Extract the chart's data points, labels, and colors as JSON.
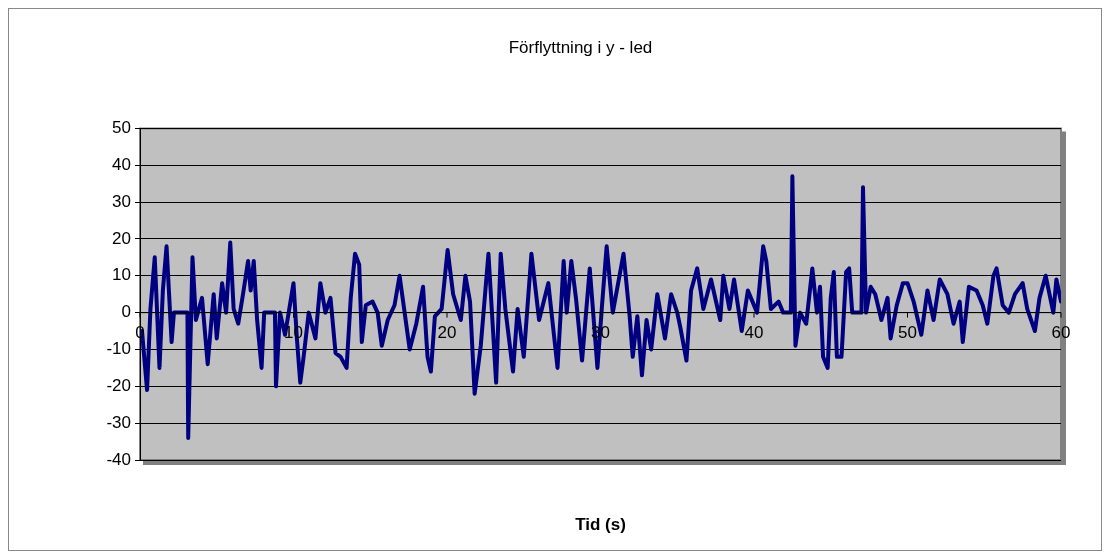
{
  "chart_data": {
    "type": "line",
    "title": "Förflyttning i y - led",
    "xlabel": "Tid (s)",
    "xlim": [
      0,
      60
    ],
    "xticks": [
      0,
      10,
      20,
      30,
      40,
      50,
      60
    ],
    "ylim": [
      -40,
      50
    ],
    "yticks": [
      -40,
      -30,
      -20,
      -10,
      0,
      10,
      20,
      30,
      40,
      50
    ],
    "grid": "y",
    "legend": false,
    "marker": "none",
    "line_style": "solid",
    "series": [
      {
        "color": "#000080",
        "x": [
          0.13,
          0.46,
          0.68,
          0.96,
          1.27,
          1.49,
          1.73,
          2.06,
          2.21,
          3.09,
          3.14,
          3.42,
          3.64,
          4.04,
          4.41,
          4.8,
          5.0,
          5.35,
          5.61,
          5.88,
          6.1,
          6.4,
          6.71,
          7.04,
          7.21,
          7.41,
          7.63,
          7.92,
          8.09,
          8.79,
          8.86,
          9.12,
          9.45,
          10.0,
          10.22,
          10.44,
          10.66,
          10.99,
          11.43,
          11.75,
          12.08,
          12.41,
          12.74,
          13.07,
          13.46,
          13.73,
          14.01,
          14.28,
          14.45,
          14.71,
          15.15,
          15.48,
          15.75,
          16.14,
          16.58,
          16.91,
          17.24,
          17.57,
          18.0,
          18.44,
          18.73,
          18.95,
          19.21,
          19.65,
          20.04,
          20.4,
          20.9,
          21.2,
          21.5,
          21.8,
          22.2,
          22.7,
          23.2,
          23.5,
          23.8,
          24.3,
          24.6,
          25.0,
          25.5,
          26.0,
          26.6,
          27.2,
          27.6,
          27.8,
          28.1,
          28.4,
          28.8,
          29.3,
          29.8,
          30.1,
          30.4,
          30.8,
          31.5,
          31.9,
          32.1,
          32.4,
          32.7,
          33.0,
          33.3,
          33.7,
          34.2,
          34.6,
          35.0,
          35.2,
          35.6,
          35.9,
          36.3,
          36.7,
          37.2,
          37.8,
          38.0,
          38.4,
          38.7,
          39.2,
          39.6,
          40.2,
          40.6,
          40.8,
          41.1,
          41.6,
          41.9,
          42.4,
          42.5,
          42.7,
          43.0,
          43.4,
          43.8,
          44.1,
          44.3,
          44.5,
          44.8,
          45.0,
          45.2,
          45.4,
          45.7,
          46.0,
          46.2,
          46.4,
          47.0,
          47.1,
          47.3,
          47.6,
          47.9,
          48.3,
          48.7,
          48.9,
          49.3,
          49.7,
          50.0,
          50.4,
          50.9,
          51.3,
          51.7,
          52.1,
          52.6,
          53.0,
          53.4,
          53.6,
          54.0,
          54.5,
          54.9,
          55.2,
          55.6,
          55.8,
          56.2,
          56.6,
          57.0,
          57.5,
          57.8,
          58.3,
          58.6,
          59.0,
          59.5,
          59.7,
          60.0
        ],
        "values": [
          -5,
          -21,
          1,
          15,
          -15,
          6,
          18,
          -8,
          0,
          0,
          -34,
          15,
          -2,
          4,
          -14,
          5,
          -7,
          8,
          0,
          19,
          1,
          -3,
          5,
          14,
          6,
          14,
          -2,
          -15,
          0,
          0,
          -20,
          0,
          -6,
          8,
          -7,
          -19,
          -12,
          0,
          -7,
          8,
          0,
          4,
          -11,
          -12,
          -15,
          4,
          16,
          13,
          -8,
          2,
          3,
          0,
          -9,
          -2,
          2,
          10,
          0,
          -10,
          -3,
          7,
          -12,
          -16,
          -1,
          1,
          17,
          5,
          -2,
          10,
          3,
          -22,
          -9,
          16,
          -19,
          16,
          1,
          -16,
          1,
          -12,
          16,
          -2,
          8,
          -15,
          14,
          0,
          14,
          4,
          -13,
          12,
          -15,
          2,
          18,
          0,
          16,
          -1,
          -12,
          -1,
          -17,
          -2,
          -10,
          5,
          -7,
          5,
          0,
          -4,
          -13,
          6,
          12,
          1,
          9,
          -2,
          10,
          1,
          9,
          -5,
          6,
          0,
          18,
          14,
          1,
          3,
          0,
          0,
          37,
          -9,
          0,
          -3,
          12,
          0,
          7,
          -12,
          -15,
          4,
          11,
          -12,
          -12,
          11,
          12,
          0,
          0,
          34,
          0,
          7,
          5,
          -2,
          4,
          -7,
          2,
          8,
          8,
          3,
          -6,
          6,
          -2,
          9,
          5,
          -3,
          3,
          -8,
          7,
          6,
          2,
          -3,
          10,
          12,
          2,
          0,
          5,
          8,
          1,
          -5,
          4,
          10,
          0,
          9,
          3
        ]
      }
    ]
  }
}
